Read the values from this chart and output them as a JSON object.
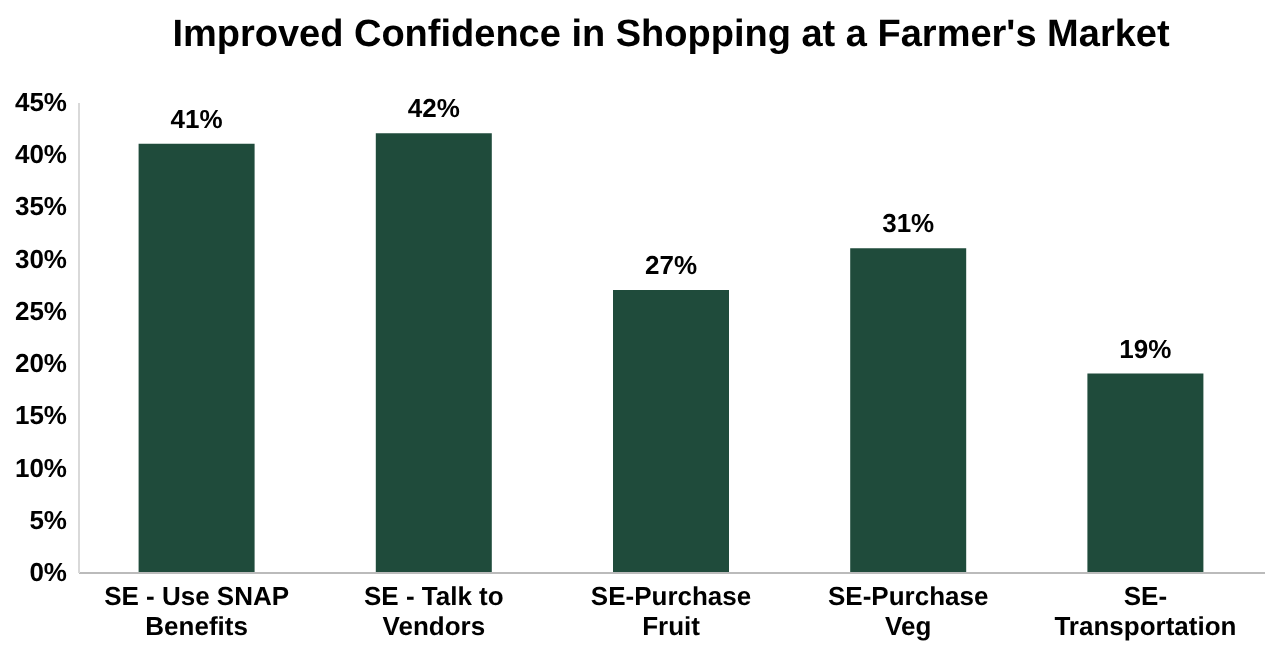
{
  "chart_data": {
    "type": "bar",
    "title": "Improved Confidence in Shopping at a Farmer's Market",
    "categories": [
      "SE - Use SNAP Benefits",
      "SE - Talk to Vendors",
      "SE-Purchase Fruit",
      "SE-Purchase Veg",
      "SE-Transportation"
    ],
    "values": [
      41,
      42,
      27,
      31,
      19
    ],
    "value_labels": [
      "41%",
      "42%",
      "27%",
      "31%",
      "19%"
    ],
    "color": "#1f4b3b",
    "ylim": [
      0,
      45
    ],
    "yticks": [
      {
        "value": 0,
        "label": "0%"
      },
      {
        "value": 5,
        "label": "5%"
      },
      {
        "value": 10,
        "label": "10%"
      },
      {
        "value": 15,
        "label": "15%"
      },
      {
        "value": 20,
        "label": "20%"
      },
      {
        "value": 25,
        "label": "25%"
      },
      {
        "value": 30,
        "label": "30%"
      },
      {
        "value": 35,
        "label": "35%"
      },
      {
        "value": 40,
        "label": "40%"
      },
      {
        "value": 45,
        "label": "45%"
      }
    ]
  }
}
